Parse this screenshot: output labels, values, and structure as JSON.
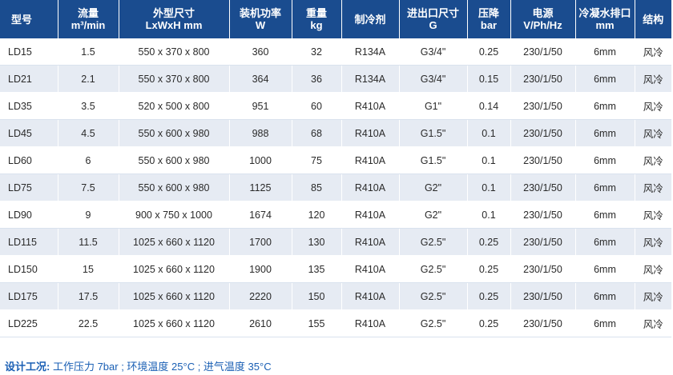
{
  "table": {
    "headers": [
      {
        "l1": "型号",
        "l2": ""
      },
      {
        "l1": "流量",
        "l2": "m³/min"
      },
      {
        "l1": "外型尺寸",
        "l2": "LxWxH mm"
      },
      {
        "l1": "装机功率",
        "l2": "W"
      },
      {
        "l1": "重量",
        "l2": "kg"
      },
      {
        "l1": "制冷剂",
        "l2": ""
      },
      {
        "l1": "进出口尺寸",
        "l2": "G"
      },
      {
        "l1": "压降",
        "l2": "bar"
      },
      {
        "l1": "电源",
        "l2": "V/Ph/Hz"
      },
      {
        "l1": "冷凝水排口",
        "l2": "mm"
      },
      {
        "l1": "结构",
        "l2": ""
      }
    ],
    "rows": [
      [
        "LD15",
        "1.5",
        "550 x 370 x 800",
        "360",
        "32",
        "R134A",
        "G3/4\"",
        "0.25",
        "230/1/50",
        "6mm",
        "风冷"
      ],
      [
        "LD21",
        "2.1",
        "550 x 370 x 800",
        "364",
        "36",
        "R134A",
        "G3/4\"",
        "0.15",
        "230/1/50",
        "6mm",
        "风冷"
      ],
      [
        "LD35",
        "3.5",
        "520 x 500 x 800",
        "951",
        "60",
        "R410A",
        "G1\"",
        "0.14",
        "230/1/50",
        "6mm",
        "风冷"
      ],
      [
        "LD45",
        "4.5",
        "550 x 600 x 980",
        "988",
        "68",
        "R410A",
        "G1.5\"",
        "0.1",
        "230/1/50",
        "6mm",
        "风冷"
      ],
      [
        "LD60",
        "6",
        "550 x 600 x 980",
        "1000",
        "75",
        "R410A",
        "G1.5\"",
        "0.1",
        "230/1/50",
        "6mm",
        "风冷"
      ],
      [
        "LD75",
        "7.5",
        "550 x 600 x 980",
        "1125",
        "85",
        "R410A",
        "G2\"",
        "0.1",
        "230/1/50",
        "6mm",
        "风冷"
      ],
      [
        "LD90",
        "9",
        "900 x 750 x 1000",
        "1674",
        "120",
        "R410A",
        "G2\"",
        "0.1",
        "230/1/50",
        "6mm",
        "风冷"
      ],
      [
        "LD115",
        "11.5",
        "1025 x 660 x 1120",
        "1700",
        "130",
        "R410A",
        "G2.5\"",
        "0.25",
        "230/1/50",
        "6mm",
        "风冷"
      ],
      [
        "LD150",
        "15",
        "1025 x 660 x 1120",
        "1900",
        "135",
        "R410A",
        "G2.5\"",
        "0.25",
        "230/1/50",
        "6mm",
        "风冷"
      ],
      [
        "LD175",
        "17.5",
        "1025 x 660 x 1120",
        "2220",
        "150",
        "R410A",
        "G2.5\"",
        "0.25",
        "230/1/50",
        "6mm",
        "风冷"
      ],
      [
        "LD225",
        "22.5",
        "1025 x 660 x 1120",
        "2610",
        "155",
        "R410A",
        "G2.5\"",
        "0.25",
        "230/1/50",
        "6mm",
        "风冷"
      ]
    ]
  },
  "footnote": {
    "label": "设计工况:",
    "text": "工作压力 7bar ; 环境温度 25°C ; 进气温度 35°C"
  },
  "colors": {
    "header_bg": "#1a4c8f",
    "stripe_bg": "#e6ebf3",
    "footnote_text": "#1a5fb4"
  }
}
